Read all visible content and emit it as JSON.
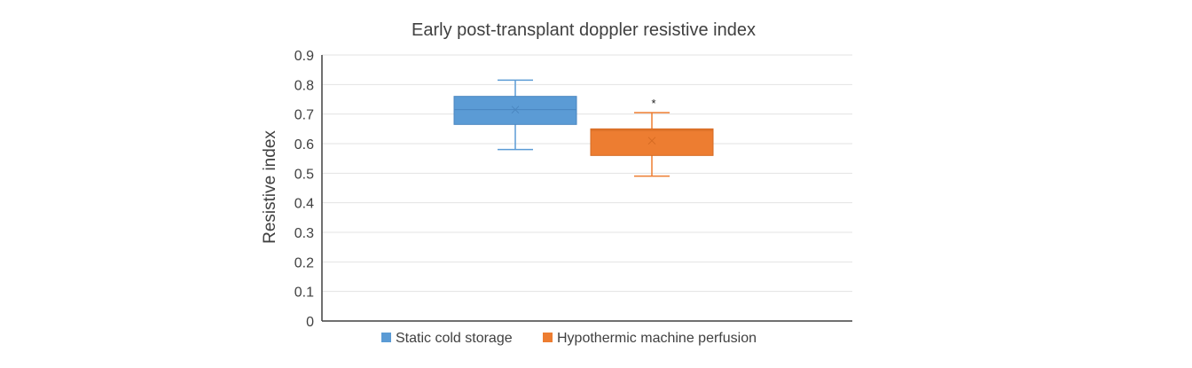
{
  "chart_data": {
    "type": "box",
    "title": "Early post-transplant doppler resistive index",
    "xlabel": "",
    "ylabel": "Resistive index",
    "ylim": [
      0,
      0.9
    ],
    "yticks": [
      0,
      0.1,
      0.2,
      0.3,
      0.4,
      0.5,
      0.6,
      0.7,
      0.8,
      0.9
    ],
    "ytick_labels": [
      "0",
      "0.1",
      "0.2",
      "0.3",
      "0.4",
      "0.5",
      "0.6",
      "0.7",
      "0.8",
      "0.9"
    ],
    "grid": true,
    "legend_position": "bottom",
    "series": [
      {
        "name": "Static cold storage",
        "color": "#5b9bd5",
        "edge_color": "#4a86c0",
        "min": 0.58,
        "q1": 0.665,
        "median": 0.715,
        "q3": 0.76,
        "max": 0.815,
        "mean": 0.715
      },
      {
        "name": "Hypothermic machine perfusion",
        "color": "#ed7d31",
        "edge_color": "#d46a22",
        "min": 0.49,
        "q1": 0.56,
        "median": 0.645,
        "q3": 0.65,
        "max": 0.705,
        "mean": 0.61,
        "annotation": "*"
      }
    ]
  }
}
